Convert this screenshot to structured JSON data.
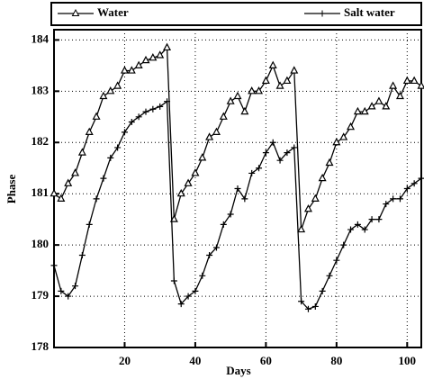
{
  "chart_data": {
    "type": "line",
    "x_label": "Days",
    "y_label": "Phase",
    "x": [
      0,
      2,
      4,
      6,
      8,
      10,
      12,
      14,
      16,
      18,
      20,
      22,
      24,
      26,
      28,
      30,
      32,
      34,
      36,
      38,
      40,
      42,
      44,
      46,
      48,
      50,
      52,
      54,
      56,
      58,
      60,
      62,
      64,
      66,
      68,
      70,
      72,
      74,
      76,
      78,
      80,
      82,
      84,
      86,
      88,
      90,
      92,
      94,
      96,
      98,
      100,
      102,
      104
    ],
    "series": [
      {
        "name": "Water",
        "color": "#000000",
        "marker": "triangle",
        "values": [
          181.0,
          180.9,
          181.2,
          181.4,
          181.8,
          182.2,
          182.5,
          182.9,
          183.0,
          183.1,
          183.4,
          183.4,
          183.5,
          183.6,
          183.65,
          183.7,
          183.85,
          180.5,
          181.0,
          181.2,
          181.4,
          181.7,
          182.1,
          182.2,
          182.5,
          182.8,
          182.9,
          182.6,
          183.0,
          183.0,
          183.2,
          183.5,
          183.1,
          183.2,
          183.4,
          180.3,
          180.7,
          180.9,
          181.3,
          181.6,
          182.0,
          182.1,
          182.3,
          182.6,
          182.6,
          182.7,
          182.8,
          182.7,
          183.1,
          182.9,
          183.2,
          183.2,
          183.1
        ]
      },
      {
        "name": "Salt water",
        "color": "#000000",
        "marker": "plus",
        "values": [
          179.6,
          179.1,
          179.0,
          179.2,
          179.8,
          180.4,
          180.9,
          181.3,
          181.7,
          181.9,
          182.2,
          182.4,
          182.5,
          182.6,
          182.65,
          182.7,
          182.8,
          179.3,
          178.85,
          179.0,
          179.1,
          179.4,
          179.8,
          179.95,
          180.4,
          180.6,
          181.1,
          180.9,
          181.4,
          181.5,
          181.8,
          182.0,
          181.65,
          181.8,
          181.9,
          178.9,
          178.75,
          178.8,
          179.1,
          179.4,
          179.7,
          180.0,
          180.3,
          180.4,
          180.3,
          180.5,
          180.5,
          180.8,
          180.9,
          180.9,
          181.1,
          181.2,
          181.3
        ]
      }
    ],
    "xlim": [
      0,
      104
    ],
    "xticks": [
      20,
      40,
      60,
      80,
      100
    ],
    "ylim": [
      178,
      184.2
    ],
    "yticks": [
      178,
      179,
      180,
      181,
      182,
      183,
      184
    ],
    "grid": true,
    "legend": "top"
  }
}
